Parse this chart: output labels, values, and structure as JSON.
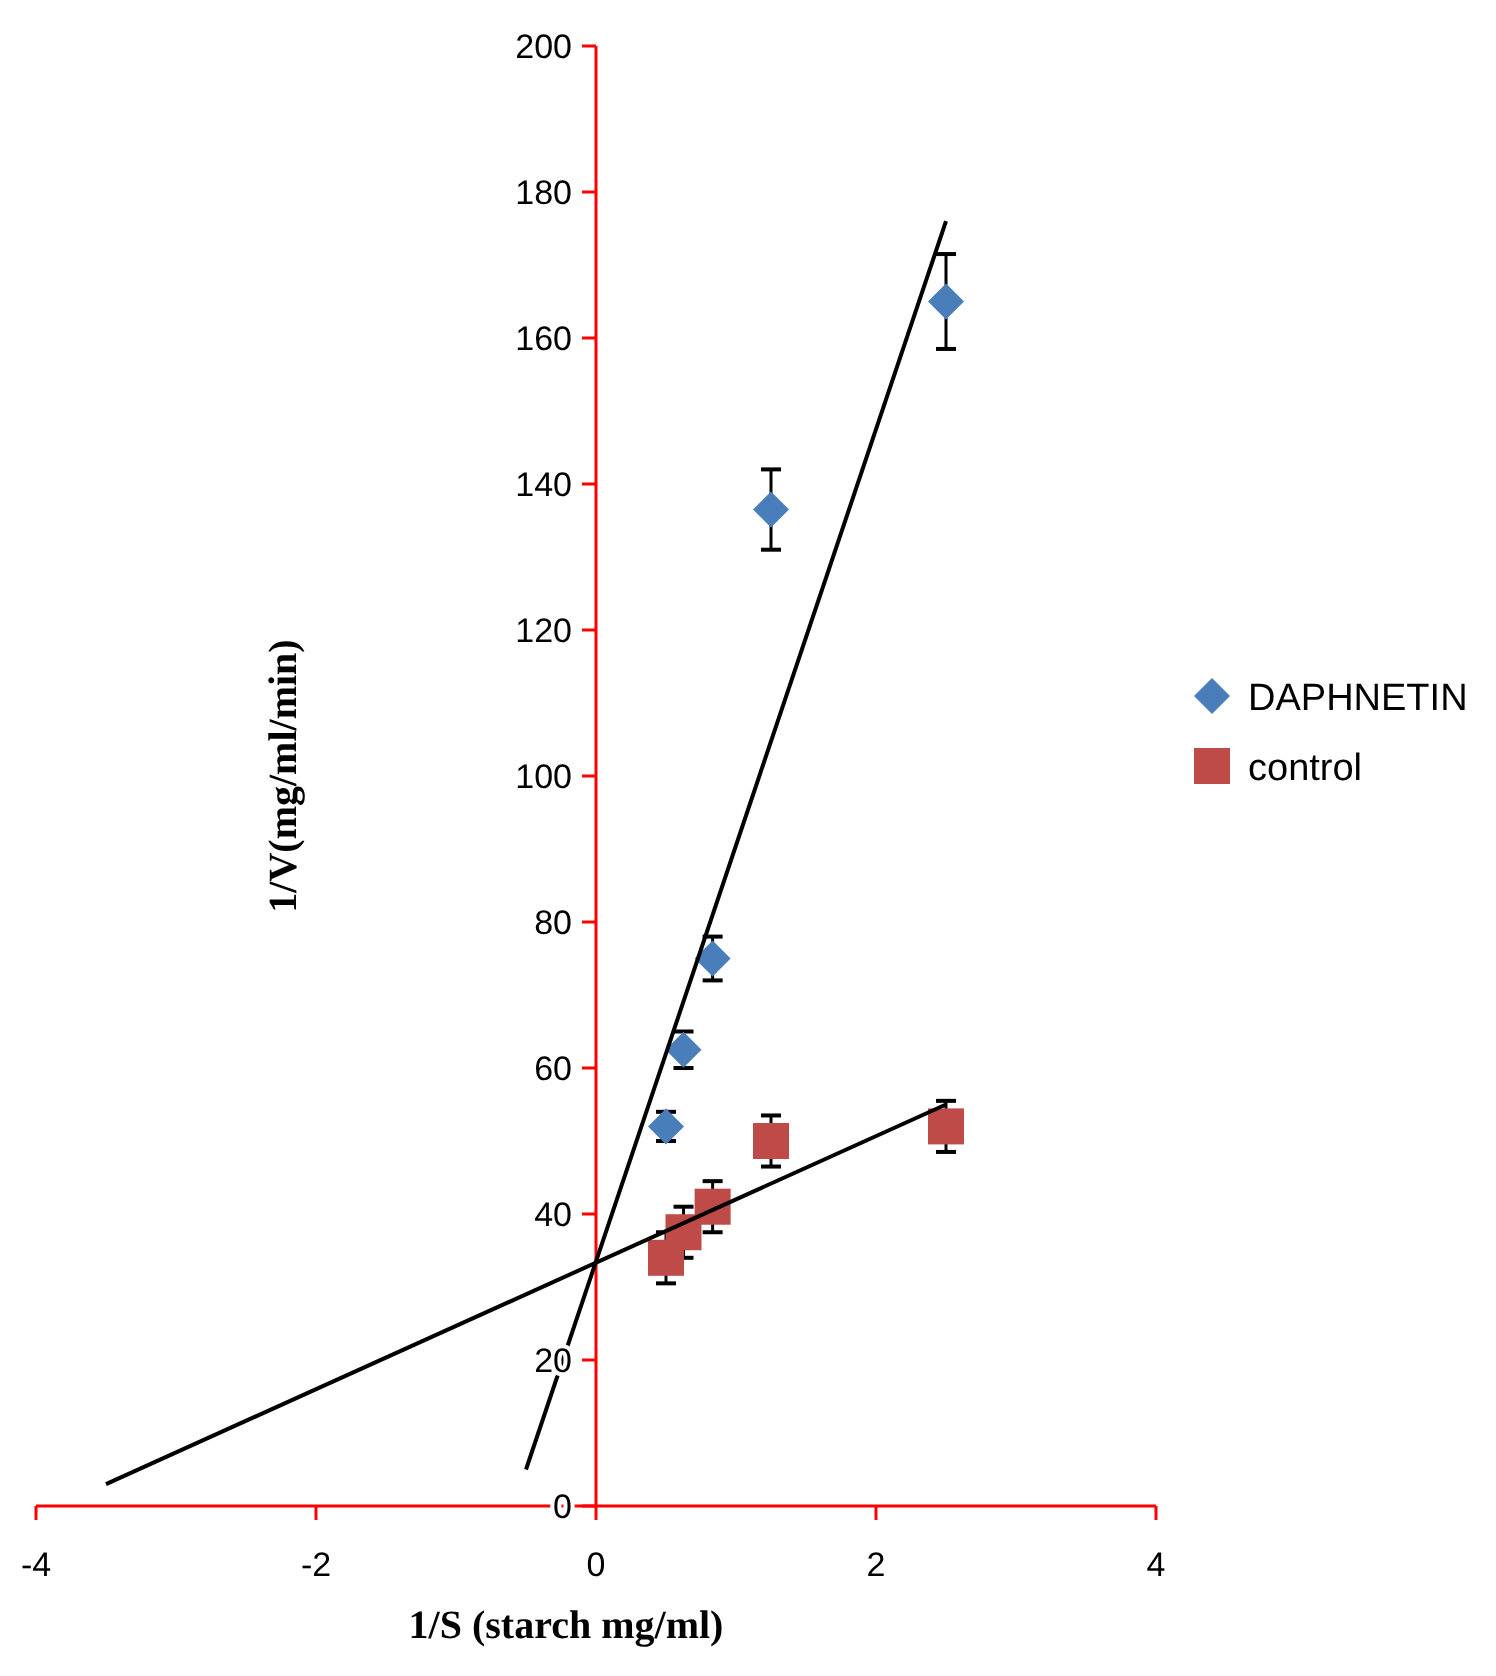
{
  "chart_data": {
    "type": "scatter",
    "xlabel": "1/S (starch mg/ml)",
    "ylabel": "1/V(mg/ml/min)",
    "x": [
      0.5,
      0.625,
      0.833,
      1.25,
      2.5
    ],
    "series": [
      {
        "name": "DAPHNETIN",
        "color": "#4a7ebb",
        "marker": "diamond",
        "values": [
          52,
          62.5,
          75,
          136.5,
          165
        ],
        "errors": [
          2,
          2.5,
          3,
          5.5,
          6.5
        ]
      },
      {
        "name": "control",
        "color": "#be4b48",
        "marker": "square",
        "values": [
          34,
          37.5,
          41,
          50,
          52
        ],
        "errors": [
          3.5,
          3.5,
          3.5,
          3.5,
          3.5
        ]
      },
      {
        "type": "line",
        "color": "#000000",
        "marker": "none",
        "x": [
          -0.5,
          2.5
        ],
        "values": [
          5,
          176
        ]
      },
      {
        "type": "line",
        "color": "#000000",
        "marker": "none",
        "x": [
          -3.5,
          2.5
        ],
        "values": [
          3,
          55
        ]
      }
    ],
    "xlim": [
      -4,
      4
    ],
    "xticks": [
      -4,
      -2,
      0,
      2,
      4
    ],
    "ylim": [
      0,
      200
    ],
    "yticks": [
      0,
      20,
      40,
      60,
      80,
      100,
      120,
      140,
      160,
      180,
      200
    ],
    "grid": false,
    "legend": "right",
    "line_style": "solid"
  }
}
